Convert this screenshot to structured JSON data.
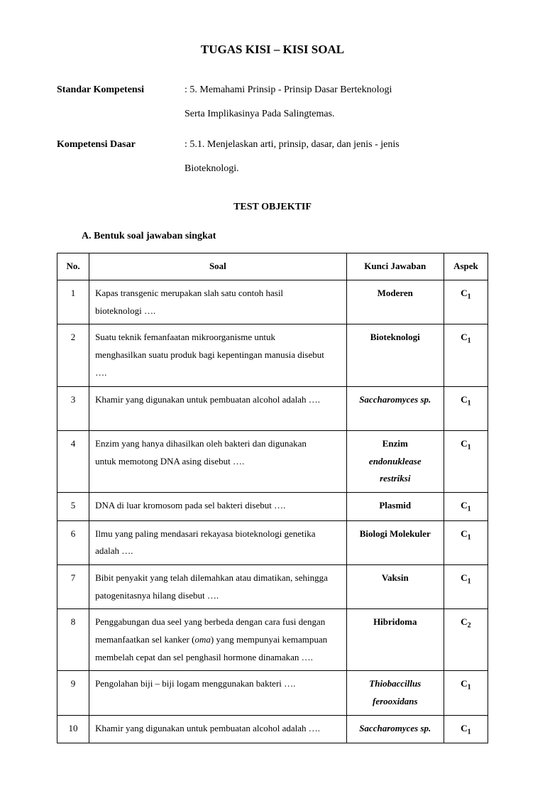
{
  "title": "TUGAS KISI – KISI SOAL",
  "meta": {
    "sk_label": "Standar Kompetensi",
    "sk_value1": ": 5. Memahami Prinsip - Prinsip Dasar Berteknologi",
    "sk_value2": "Serta Implikasinya Pada Salingtemas.",
    "kd_label": "Kompetensi Dasar",
    "kd_value1": ": 5.1. Menjelaskan arti, prinsip, dasar, dan jenis - jenis",
    "kd_value2": "Bioteknologi."
  },
  "subheading": "TEST OBJEKTIF",
  "section_a": "A.  Bentuk soal jawaban singkat",
  "table": {
    "h_no": "No.",
    "h_soal": "Soal",
    "h_kunci": "Kunci Jawaban",
    "h_aspek": "Aspek",
    "rows": [
      {
        "no": "1",
        "soal_a": "Kapas transgenic merupakan slah satu contoh hasil",
        "soal_b": "bioteknologi ….",
        "kunci": "Moderen",
        "aspek": "C",
        "sub": "1"
      },
      {
        "no": "2",
        "soal_a": "Suatu teknik femanfaatan mikroorganisme untuk",
        "soal_b": "menghasilkan suatu produk bagi kepentingan manusia disebut",
        "soal_c": "….",
        "kunci": "Bioteknologi",
        "aspek": "C",
        "sub": "1"
      },
      {
        "no": "3",
        "soal_a": "Khamir yang digunakan untuk pembuatan alcohol adalah ….",
        "kunci": "Saccharomyces sp.",
        "aspek": "C",
        "sub": "1",
        "kunci_ital": true,
        "extra": true
      },
      {
        "no": "4",
        "soal_a": "Enzim yang hanya dihasilkan oleh bakteri dan digunakan",
        "soal_b": "untuk memotong DNA asing disebut ….",
        "kunci_a": "Enzim",
        "kunci_b": "endonuklease",
        "kunci_c": "restriksi",
        "kunci_bc_ital": true,
        "aspek": "C",
        "sub": "1"
      },
      {
        "no": "5",
        "soal_a": "DNA di luar kromosom pada sel bakteri disebut ….",
        "kunci": "Plasmid",
        "aspek": "C",
        "sub": "1"
      },
      {
        "no": "6",
        "soal_a": "Ilmu yang paling mendasari rekayasa bioteknologi genetika",
        "soal_b": "adalah ….",
        "kunci": "Biologi Molekuler",
        "aspek": "C",
        "sub": "1"
      },
      {
        "no": "7",
        "soal_a": "Bibit penyakit yang telah dilemahkan atau dimatikan, sehingga",
        "soal_b": "patogenitasnya hilang disebut ….",
        "kunci": "Vaksin",
        "aspek": "C",
        "sub": "1"
      },
      {
        "no": "8",
        "soal_a": "Penggabungan dua seel yang berbeda dengan cara fusi dengan",
        "soal_b": "memanfaatkan sel kanker (oma) yang mempunyai kemampuan",
        "soal_c": "membelah cepat dan sel penghasil hormone dinamakan ….",
        "kunci": "Hibridoma",
        "aspek": "C",
        "sub": "2"
      },
      {
        "no": "9",
        "soal_a": "Pengolahan biji – biji logam menggunakan bakteri ….",
        "kunci_a": "Thiobaccillus",
        "kunci_b": "ferooxidans",
        "kunci_ab_ital": true,
        "aspek": "C",
        "sub": "1"
      },
      {
        "no": "10",
        "soal_a": "Khamir yang digunakan untuk pembuatan alcohol adalah ….",
        "kunci": "Saccharomyces sp.",
        "kunci_ital": true,
        "aspek": "C",
        "sub": "1"
      }
    ]
  }
}
